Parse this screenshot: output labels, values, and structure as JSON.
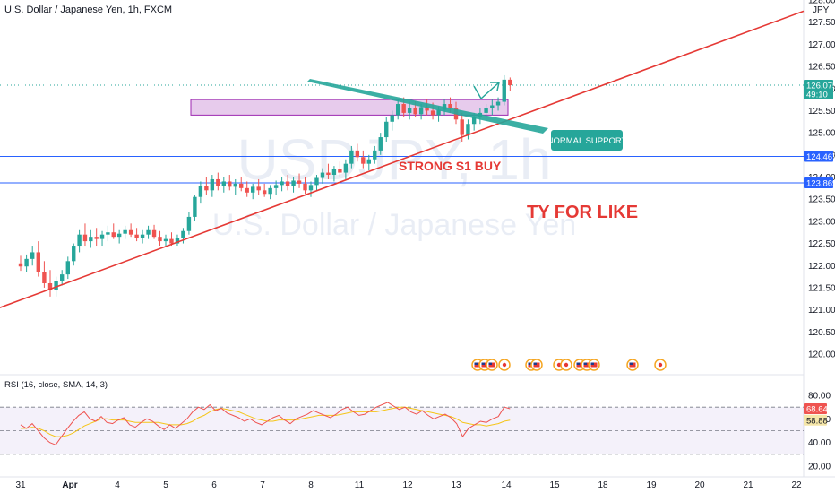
{
  "chart_data": {
    "type": "candlestick",
    "title": "U.S. Dollar / Japanese Yen, 1h, FXCM",
    "watermark": {
      "symbol": "USDJPY, 1h",
      "name": "U.S. Dollar / Japanese Yen"
    },
    "currency_label": "JPY",
    "price_axis": {
      "range": [
        119.4,
        128.0
      ],
      "ticks": [
        "128.000",
        "127.500",
        "127.000",
        "126.500",
        "126.000",
        "125.500",
        "125.000",
        "124.500",
        "124.000",
        "123.500",
        "123.000",
        "122.500",
        "122.000",
        "121.500",
        "121.000",
        "120.500",
        "120.000"
      ],
      "tick_values": [
        128.0,
        127.5,
        127.0,
        126.5,
        126.0,
        125.5,
        125.0,
        124.5,
        124.0,
        123.5,
        123.0,
        122.5,
        122.0,
        121.5,
        121.0,
        120.5,
        120.0
      ]
    },
    "time_axis": {
      "labels": [
        "31",
        "Apr",
        "4",
        "5",
        "6",
        "7",
        "8",
        "11",
        "12",
        "13",
        "14",
        "15",
        "18",
        "19",
        "20",
        "21",
        "22"
      ],
      "positions": [
        0,
        1,
        2,
        3,
        4,
        5,
        6,
        7,
        8,
        9,
        10,
        11,
        12,
        13,
        14,
        15,
        16
      ]
    },
    "price_tags": [
      {
        "label": "126.075",
        "sublabel": "49:10",
        "value": 126.075,
        "color": "#26a69a"
      },
      {
        "label": "124.467",
        "value": 124.467,
        "color": "#2962ff"
      },
      {
        "label": "123.869",
        "value": 123.869,
        "color": "#2962ff"
      }
    ],
    "horizontal_lines": [
      {
        "value": 124.467,
        "color": "#2962ff"
      },
      {
        "value": 123.869,
        "color": "#2962ff"
      }
    ],
    "last_price_line": {
      "value": 126.075,
      "color": "#26a69a"
    },
    "candles": [
      {
        "t": 0.0,
        "o": 122.05,
        "h": 122.22,
        "l": 121.88,
        "c": 121.98
      },
      {
        "t": 0.12,
        "o": 121.98,
        "h": 122.25,
        "l": 121.86,
        "c": 122.15
      },
      {
        "t": 0.24,
        "o": 122.15,
        "h": 122.45,
        "l": 122.0,
        "c": 122.3
      },
      {
        "t": 0.36,
        "o": 122.3,
        "h": 122.55,
        "l": 121.75,
        "c": 121.85
      },
      {
        "t": 0.48,
        "o": 121.85,
        "h": 122.1,
        "l": 121.5,
        "c": 121.6
      },
      {
        "t": 0.6,
        "o": 121.6,
        "h": 121.9,
        "l": 121.3,
        "c": 121.45
      },
      {
        "t": 0.72,
        "o": 121.45,
        "h": 121.75,
        "l": 121.3,
        "c": 121.65
      },
      {
        "t": 0.84,
        "o": 121.65,
        "h": 121.9,
        "l": 121.55,
        "c": 121.8
      },
      {
        "t": 0.96,
        "o": 121.8,
        "h": 122.2,
        "l": 121.7,
        "c": 122.1
      },
      {
        "t": 1.08,
        "o": 122.1,
        "h": 122.5,
        "l": 122.0,
        "c": 122.45
      },
      {
        "t": 1.2,
        "o": 122.45,
        "h": 122.8,
        "l": 122.3,
        "c": 122.7
      },
      {
        "t": 1.32,
        "o": 122.7,
        "h": 122.95,
        "l": 122.45,
        "c": 122.55
      },
      {
        "t": 1.44,
        "o": 122.55,
        "h": 122.8,
        "l": 122.4,
        "c": 122.65
      },
      {
        "t": 1.56,
        "o": 122.65,
        "h": 122.85,
        "l": 122.45,
        "c": 122.6
      },
      {
        "t": 1.68,
        "o": 122.6,
        "h": 122.78,
        "l": 122.45,
        "c": 122.7
      },
      {
        "t": 1.8,
        "o": 122.7,
        "h": 122.9,
        "l": 122.55,
        "c": 122.75
      },
      {
        "t": 1.92,
        "o": 122.75,
        "h": 122.95,
        "l": 122.6,
        "c": 122.65
      },
      {
        "t": 2.04,
        "o": 122.65,
        "h": 122.8,
        "l": 122.5,
        "c": 122.72
      },
      {
        "t": 2.16,
        "o": 122.72,
        "h": 122.9,
        "l": 122.6,
        "c": 122.8
      },
      {
        "t": 2.28,
        "o": 122.8,
        "h": 122.95,
        "l": 122.65,
        "c": 122.7
      },
      {
        "t": 2.4,
        "o": 122.7,
        "h": 122.85,
        "l": 122.55,
        "c": 122.62
      },
      {
        "t": 2.52,
        "o": 122.62,
        "h": 122.8,
        "l": 122.5,
        "c": 122.7
      },
      {
        "t": 2.64,
        "o": 122.7,
        "h": 122.9,
        "l": 122.6,
        "c": 122.8
      },
      {
        "t": 2.76,
        "o": 122.8,
        "h": 122.92,
        "l": 122.6,
        "c": 122.65
      },
      {
        "t": 2.88,
        "o": 122.65,
        "h": 122.78,
        "l": 122.45,
        "c": 122.55
      },
      {
        "t": 3.0,
        "o": 122.55,
        "h": 122.7,
        "l": 122.42,
        "c": 122.6
      },
      {
        "t": 3.12,
        "o": 122.6,
        "h": 122.75,
        "l": 122.45,
        "c": 122.5
      },
      {
        "t": 3.24,
        "o": 122.5,
        "h": 122.7,
        "l": 122.45,
        "c": 122.62
      },
      {
        "t": 3.36,
        "o": 122.62,
        "h": 122.85,
        "l": 122.5,
        "c": 122.78
      },
      {
        "t": 3.48,
        "o": 122.78,
        "h": 123.2,
        "l": 122.7,
        "c": 123.1
      },
      {
        "t": 3.6,
        "o": 123.1,
        "h": 123.6,
        "l": 123.0,
        "c": 123.55
      },
      {
        "t": 3.72,
        "o": 123.55,
        "h": 123.9,
        "l": 123.4,
        "c": 123.8
      },
      {
        "t": 3.84,
        "o": 123.8,
        "h": 124.0,
        "l": 123.6,
        "c": 123.7
      },
      {
        "t": 3.96,
        "o": 123.7,
        "h": 124.05,
        "l": 123.55,
        "c": 123.95
      },
      {
        "t": 4.08,
        "o": 123.95,
        "h": 124.1,
        "l": 123.7,
        "c": 123.8
      },
      {
        "t": 4.2,
        "o": 123.8,
        "h": 124.0,
        "l": 123.65,
        "c": 123.9
      },
      {
        "t": 4.32,
        "o": 123.9,
        "h": 124.05,
        "l": 123.7,
        "c": 123.78
      },
      {
        "t": 4.44,
        "o": 123.78,
        "h": 123.95,
        "l": 123.6,
        "c": 123.85
      },
      {
        "t": 4.56,
        "o": 123.85,
        "h": 124.0,
        "l": 123.68,
        "c": 123.75
      },
      {
        "t": 4.68,
        "o": 123.75,
        "h": 123.9,
        "l": 123.55,
        "c": 123.65
      },
      {
        "t": 4.8,
        "o": 123.65,
        "h": 123.85,
        "l": 123.5,
        "c": 123.78
      },
      {
        "t": 4.92,
        "o": 123.78,
        "h": 123.95,
        "l": 123.6,
        "c": 123.7
      },
      {
        "t": 5.04,
        "o": 123.7,
        "h": 123.85,
        "l": 123.55,
        "c": 123.62
      },
      {
        "t": 5.16,
        "o": 123.62,
        "h": 123.82,
        "l": 123.5,
        "c": 123.75
      },
      {
        "t": 5.28,
        "o": 123.75,
        "h": 123.92,
        "l": 123.6,
        "c": 123.82
      },
      {
        "t": 5.4,
        "o": 123.82,
        "h": 124.0,
        "l": 123.68,
        "c": 123.9
      },
      {
        "t": 5.52,
        "o": 123.9,
        "h": 124.05,
        "l": 123.7,
        "c": 123.8
      },
      {
        "t": 5.64,
        "o": 123.8,
        "h": 124.0,
        "l": 123.65,
        "c": 123.92
      },
      {
        "t": 5.76,
        "o": 123.92,
        "h": 124.08,
        "l": 123.75,
        "c": 123.85
      },
      {
        "t": 5.88,
        "o": 123.85,
        "h": 124.0,
        "l": 123.62,
        "c": 123.7
      },
      {
        "t": 6.0,
        "o": 123.7,
        "h": 123.9,
        "l": 123.55,
        "c": 123.82
      },
      {
        "t": 6.12,
        "o": 123.82,
        "h": 124.05,
        "l": 123.7,
        "c": 123.98
      },
      {
        "t": 6.24,
        "o": 123.98,
        "h": 124.2,
        "l": 123.85,
        "c": 124.1
      },
      {
        "t": 6.36,
        "o": 124.1,
        "h": 124.3,
        "l": 123.95,
        "c": 124.05
      },
      {
        "t": 6.48,
        "o": 124.05,
        "h": 124.25,
        "l": 123.9,
        "c": 124.18
      },
      {
        "t": 6.6,
        "o": 124.18,
        "h": 124.35,
        "l": 124.0,
        "c": 124.1
      },
      {
        "t": 6.72,
        "o": 124.1,
        "h": 124.4,
        "l": 123.95,
        "c": 124.3
      },
      {
        "t": 6.84,
        "o": 124.3,
        "h": 124.7,
        "l": 124.2,
        "c": 124.6
      },
      {
        "t": 6.96,
        "o": 124.6,
        "h": 124.75,
        "l": 124.35,
        "c": 124.45
      },
      {
        "t": 7.08,
        "o": 124.45,
        "h": 124.6,
        "l": 124.2,
        "c": 124.3
      },
      {
        "t": 7.2,
        "o": 124.3,
        "h": 124.5,
        "l": 124.15,
        "c": 124.4
      },
      {
        "t": 7.32,
        "o": 124.4,
        "h": 124.7,
        "l": 124.3,
        "c": 124.6
      },
      {
        "t": 7.44,
        "o": 124.6,
        "h": 125.0,
        "l": 124.5,
        "c": 124.9
      },
      {
        "t": 7.56,
        "o": 124.9,
        "h": 125.35,
        "l": 124.8,
        "c": 125.25
      },
      {
        "t": 7.68,
        "o": 125.25,
        "h": 125.5,
        "l": 125.05,
        "c": 125.4
      },
      {
        "t": 7.8,
        "o": 125.4,
        "h": 125.75,
        "l": 125.3,
        "c": 125.65
      },
      {
        "t": 7.92,
        "o": 125.65,
        "h": 125.8,
        "l": 125.35,
        "c": 125.45
      },
      {
        "t": 8.04,
        "o": 125.45,
        "h": 125.7,
        "l": 125.3,
        "c": 125.55
      },
      {
        "t": 8.16,
        "o": 125.55,
        "h": 125.72,
        "l": 125.35,
        "c": 125.42
      },
      {
        "t": 8.28,
        "o": 125.42,
        "h": 125.65,
        "l": 125.3,
        "c": 125.58
      },
      {
        "t": 8.4,
        "o": 125.58,
        "h": 125.75,
        "l": 125.4,
        "c": 125.5
      },
      {
        "t": 8.52,
        "o": 125.5,
        "h": 125.68,
        "l": 125.3,
        "c": 125.4
      },
      {
        "t": 8.64,
        "o": 125.4,
        "h": 125.6,
        "l": 125.25,
        "c": 125.52
      },
      {
        "t": 8.76,
        "o": 125.52,
        "h": 125.75,
        "l": 125.4,
        "c": 125.65
      },
      {
        "t": 8.88,
        "o": 125.65,
        "h": 125.8,
        "l": 125.45,
        "c": 125.55
      },
      {
        "t": 9.0,
        "o": 125.55,
        "h": 125.7,
        "l": 125.2,
        "c": 125.3
      },
      {
        "t": 9.12,
        "o": 125.3,
        "h": 125.45,
        "l": 124.8,
        "c": 124.95
      },
      {
        "t": 9.24,
        "o": 124.95,
        "h": 125.3,
        "l": 124.85,
        "c": 125.2
      },
      {
        "t": 9.36,
        "o": 125.2,
        "h": 125.45,
        "l": 125.05,
        "c": 125.35
      },
      {
        "t": 9.48,
        "o": 125.35,
        "h": 125.55,
        "l": 125.2,
        "c": 125.45
      },
      {
        "t": 9.6,
        "o": 125.45,
        "h": 125.65,
        "l": 125.3,
        "c": 125.55
      },
      {
        "t": 9.72,
        "o": 125.55,
        "h": 125.75,
        "l": 125.4,
        "c": 125.62
      },
      {
        "t": 9.84,
        "o": 125.62,
        "h": 125.8,
        "l": 125.5,
        "c": 125.7
      },
      {
        "t": 9.96,
        "o": 125.7,
        "h": 126.3,
        "l": 125.62,
        "c": 126.2
      },
      {
        "t": 10.08,
        "o": 126.2,
        "h": 126.25,
        "l": 125.95,
        "c": 126.075
      }
    ],
    "rsi": {
      "label": "RSI (16, close, SMA, 14, 3)",
      "range": [
        15,
        90
      ],
      "ticks": [
        "80.00",
        "60.00",
        "40.00",
        "20.00"
      ],
      "tick_values": [
        80,
        60,
        40,
        20
      ],
      "bands": {
        "upper": 70,
        "middle": 50,
        "lower": 30
      },
      "value_label": "68.64",
      "value": 68.64,
      "ma_label": "58.88",
      "ma_value": 58.88,
      "series": [
        55,
        52,
        56,
        50,
        44,
        40,
        38,
        45,
        52,
        58,
        63,
        66,
        60,
        58,
        62,
        57,
        56,
        59,
        61,
        55,
        53,
        57,
        60,
        58,
        54,
        51,
        55,
        52,
        56,
        60,
        66,
        70,
        68,
        72,
        67,
        69,
        65,
        63,
        61,
        58,
        60,
        57,
        55,
        58,
        61,
        63,
        59,
        56,
        60,
        62,
        64,
        67,
        65,
        63,
        61,
        64,
        68,
        70,
        66,
        63,
        64,
        67,
        70,
        72,
        74,
        71,
        68,
        70,
        66,
        64,
        67,
        63,
        60,
        62,
        64,
        61,
        56,
        45,
        52,
        55,
        58,
        57,
        60,
        62,
        70,
        68.64
      ],
      "ma_series": [
        52,
        52,
        53,
        52,
        50,
        47,
        45,
        45,
        46,
        48,
        51,
        54,
        56,
        58,
        60,
        60,
        59,
        59,
        59,
        58,
        57,
        57,
        57,
        57,
        57,
        56,
        55,
        55,
        55,
        56,
        58,
        61,
        63,
        66,
        68,
        69,
        68,
        67,
        66,
        64,
        62,
        60,
        59,
        58,
        58,
        59,
        59,
        59,
        59,
        60,
        61,
        62,
        63,
        63,
        63,
        63,
        64,
        65,
        66,
        66,
        66,
        66,
        66,
        67,
        68,
        69,
        70,
        70,
        69,
        68,
        67,
        66,
        65,
        64,
        63,
        62,
        60,
        57,
        56,
        55,
        55,
        54,
        55,
        56,
        58,
        58.88
      ]
    },
    "annotations": {
      "normal_support": "NORMAL SUPPORT",
      "strong_s1": "STRONG S1  BUY",
      "ty_for_like": "TY FOR LIKE"
    },
    "colors": {
      "up": "#26a69a",
      "down": "#ef5350",
      "trendline": "#e53935",
      "annotation_teal": "#26a69a",
      "rsi_line": "#ef5350",
      "rsi_ma": "#f5c518",
      "zone_fill": "#e1bee7",
      "zone_border": "#9c27b0",
      "hline": "#2962ff"
    },
    "event_icons": [
      "us-flag-icon",
      "jp-flag-icon"
    ]
  }
}
